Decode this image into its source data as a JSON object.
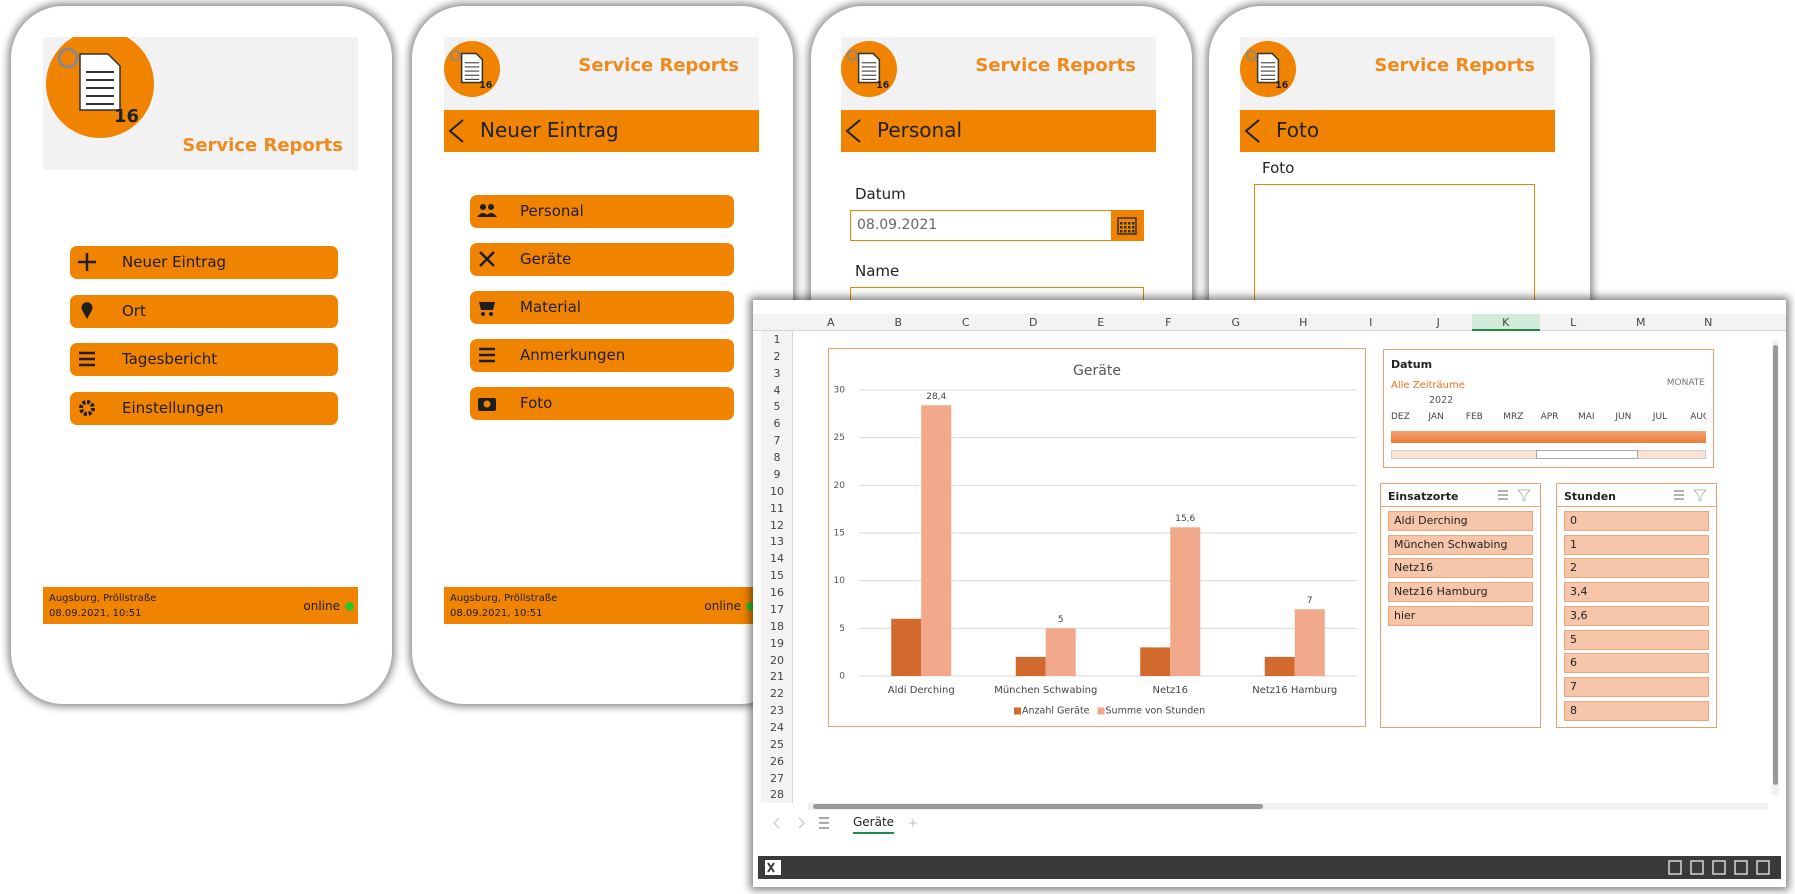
{
  "logo_text": "16",
  "phones": [
    {
      "title": "Service Reports",
      "buttons": [
        "Neuer Eintrag",
        "Ort",
        "Tagesbericht",
        "Einstellungen"
      ],
      "footer": {
        "location": "Augsburg, Pröllstraße",
        "datetime": "08.09.2021, 10:51",
        "status": "online"
      }
    },
    {
      "title": "Service Reports",
      "page": "Neuer Eintrag",
      "buttons": [
        "Personal",
        "Geräte",
        "Material",
        "Anmerkungen",
        "Foto"
      ],
      "footer": {
        "location": "Augsburg, Pröllstraße",
        "datetime": "08.09.2021, 10:51",
        "status": "online"
      }
    },
    {
      "title": "Service Reports",
      "page": "Personal",
      "fields": [
        {
          "label": "Datum",
          "value": "08.09.2021"
        },
        {
          "label": "Name"
        }
      ]
    },
    {
      "title": "Service Reports",
      "page": "Foto",
      "fields": [
        {
          "label": "Foto"
        }
      ]
    }
  ],
  "spreadsheet": {
    "columns": [
      "A",
      "B",
      "C",
      "D",
      "E",
      "F",
      "G",
      "H",
      "I",
      "J",
      "K",
      "L",
      "M",
      "N"
    ],
    "rows": [
      1,
      2,
      3,
      4,
      5,
      6,
      7,
      8,
      9,
      10,
      11,
      12,
      13,
      14,
      15,
      16,
      17,
      18,
      19,
      20,
      21,
      22,
      23,
      24,
      25,
      26,
      27,
      28
    ],
    "sheet_tab": "Geräte",
    "timeline": {
      "title": "Datum",
      "range": "Alle Zeiträume",
      "level": "MONATE",
      "year": "2022",
      "months": [
        "DEZ",
        "JAN",
        "FEB",
        "MRZ",
        "APR",
        "MAI",
        "JUN",
        "JUL",
        "AUG"
      ]
    },
    "slicers": [
      {
        "title": "Einsatzorte",
        "items": [
          "Aldi Derching",
          "München Schwabing",
          "Netz16",
          "Netz16 Hamburg",
          "hier"
        ]
      },
      {
        "title": "Stunden",
        "items": [
          "0",
          "1",
          "2",
          "3,4",
          "3,6",
          "5",
          "6",
          "7",
          "8"
        ]
      }
    ]
  },
  "chart_data": {
    "type": "bar",
    "title": "Geräte",
    "categories": [
      "Aldi Derching",
      "München Schwabing",
      "Netz16",
      "Netz16 Hamburg"
    ],
    "series": [
      {
        "name": "Anzahl Geräte",
        "color": "#d36a2d",
        "values": [
          6,
          2,
          3,
          2
        ]
      },
      {
        "name": "Summe von Stunden",
        "color": "#f2a88a",
        "values": [
          28.4,
          5,
          15.6,
          7
        ],
        "value_labels": [
          "28,4",
          "5",
          "15,6",
          "7"
        ]
      }
    ],
    "ylim": [
      0,
      30
    ],
    "yticks": [
      0,
      5,
      10,
      15,
      20,
      25,
      30
    ],
    "grid": true,
    "legend": "bottom"
  }
}
